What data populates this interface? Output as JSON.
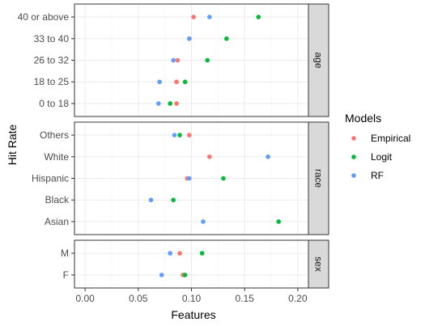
{
  "chart_data": {
    "type": "scatter",
    "xlabel": "Features",
    "ylabel": "Hit Rate",
    "xlim": [
      -0.01,
      0.21
    ],
    "xticks": [
      "0.00",
      "0.05",
      "0.10",
      "0.15",
      "0.20"
    ],
    "xtick_values": [
      0,
      0.05,
      0.1,
      0.15,
      0.2
    ],
    "grid": true,
    "legend": {
      "title": "Models",
      "placement": "right",
      "entries": [
        {
          "name": "Empirical",
          "color": "#F8766D"
        },
        {
          "name": "Logit",
          "color": "#00BA38"
        },
        {
          "name": "RF",
          "color": "#619CFF"
        }
      ]
    },
    "facets": [
      {
        "label": "age",
        "categories": [
          "0 to 18",
          "18 to 25",
          "26 to 32",
          "33 to 40",
          "40 or above"
        ],
        "series": [
          {
            "name": "Empirical",
            "values": [
              0.086,
              0.086,
              0.087,
              0.098,
              0.102
            ]
          },
          {
            "name": "Logit",
            "values": [
              0.08,
              0.094,
              0.115,
              0.133,
              0.163
            ]
          },
          {
            "name": "RF",
            "values": [
              0.069,
              0.07,
              0.083,
              0.098,
              0.117
            ]
          }
        ]
      },
      {
        "label": "race",
        "categories": [
          "Asian",
          "Black",
          "Hispanic",
          "White",
          "Others"
        ],
        "series": [
          {
            "name": "Empirical",
            "values": [
              null,
              null,
              0.096,
              0.117,
              0.098
            ]
          },
          {
            "name": "Logit",
            "values": [
              0.182,
              0.083,
              0.13,
              null,
              0.089
            ]
          },
          {
            "name": "RF",
            "values": [
              0.111,
              0.062,
              0.098,
              0.172,
              0.084
            ]
          }
        ]
      },
      {
        "label": "sex",
        "categories": [
          "F",
          "M"
        ],
        "series": [
          {
            "name": "Empirical",
            "values": [
              0.092,
              0.089
            ]
          },
          {
            "name": "Logit",
            "values": [
              0.094,
              0.11
            ]
          },
          {
            "name": "RF",
            "values": [
              0.072,
              0.08
            ]
          }
        ]
      }
    ]
  }
}
